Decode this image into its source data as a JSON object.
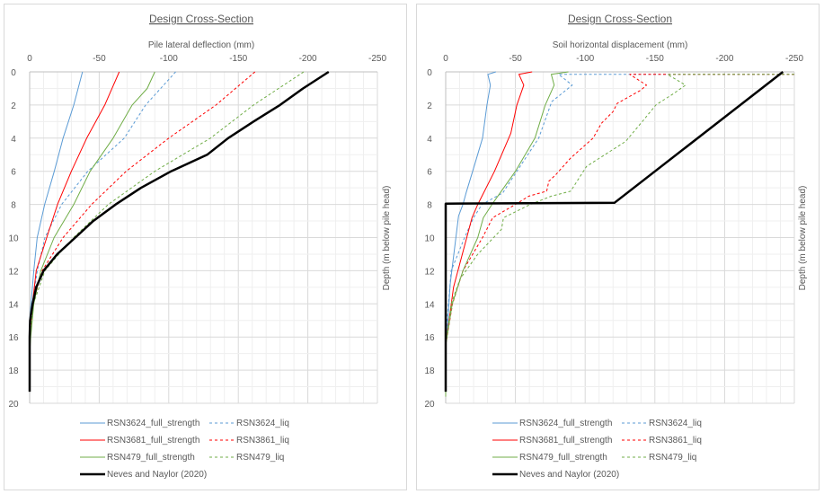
{
  "chart_data": [
    {
      "type": "line",
      "title": "Design Cross-Section",
      "xlabel": "Pile lateral deflection (mm)",
      "ylabel": "Depth (m below pile head)",
      "xlim": [
        0,
        -250
      ],
      "ylim": [
        0,
        20
      ],
      "xticks": [
        "0",
        "-50",
        "-100",
        "-150",
        "-200",
        "-250"
      ],
      "yticks": [
        "0",
        "2",
        "4",
        "6",
        "8",
        "10",
        "12",
        "14",
        "16",
        "18",
        "20"
      ],
      "grid": true,
      "legend_position": "bottom",
      "series": [
        {
          "name": "RSN3624_full_strength",
          "color": "#5b9bd5",
          "dash": false,
          "x": [
            -38,
            -31.7,
            -24,
            -17.7,
            -10.8,
            -5.4,
            -3,
            -1,
            0
          ],
          "y": [
            0,
            2,
            4,
            6,
            8,
            10,
            12,
            14,
            15
          ]
        },
        {
          "name": "RSN3624_liq",
          "color": "#5b9bd5",
          "dash": true,
          "x": [
            -105,
            -83.4,
            -68,
            -41.8,
            -23,
            -11,
            -5.5,
            -2,
            0
          ],
          "y": [
            0,
            2,
            4,
            6,
            8,
            10,
            12,
            14,
            15
          ]
        },
        {
          "name": "RSN3681_full_strength",
          "color": "#ff0000",
          "dash": false,
          "x": [
            -64.4,
            -54,
            -41,
            -30,
            -20,
            -12.3,
            -4.7,
            -2,
            0
          ],
          "y": [
            0,
            2,
            4,
            6,
            8,
            10,
            12,
            14,
            16
          ]
        },
        {
          "name": "RSN3861_liq",
          "color": "#ff0000",
          "dash": true,
          "x": [
            -162,
            -134,
            -100,
            -69.4,
            -44.6,
            -24,
            -9,
            -2.4,
            0
          ],
          "y": [
            0,
            2,
            4,
            6,
            8,
            10,
            12,
            14,
            16
          ]
        },
        {
          "name": "RSN479_full_strength",
          "color": "#70ad47",
          "dash": false,
          "x": [
            -90,
            -84.5,
            -73.7,
            -60,
            -43.5,
            -31.7,
            -17.6,
            -8,
            -3,
            -0.8,
            0
          ],
          "y": [
            0,
            1,
            2,
            4,
            6,
            8,
            10,
            12,
            14,
            16,
            17
          ]
        },
        {
          "name": "RSN479_liq",
          "color": "#70ad47",
          "dash": true,
          "x": [
            -197,
            -161,
            -130,
            -90,
            -56.5,
            -31.6,
            -21,
            -11,
            -2.7,
            0
          ],
          "y": [
            0,
            2,
            4,
            6,
            8,
            10,
            11,
            12,
            14,
            16
          ]
        },
        {
          "name": "Neves and Naylor (2020)",
          "color": "#000000",
          "dash": false,
          "bold": true,
          "x": [
            -215,
            -196.5,
            -180,
            -161,
            -142.7,
            -127.6,
            -101.7,
            -80,
            -61.9,
            -45.7,
            -32.8,
            -19.8,
            -10,
            -4.7,
            -2.1,
            -0.3,
            0,
            0
          ],
          "y": [
            0,
            1,
            2,
            3,
            4,
            5,
            6,
            7,
            8,
            9,
            10,
            11,
            12,
            13,
            14,
            15,
            16,
            19.3
          ]
        }
      ]
    },
    {
      "type": "line",
      "title": "Design Cross-Section",
      "xlabel": "Soil horizontal displacement (mm)",
      "ylabel": "Depth (m below pile head)",
      "xlim": [
        0,
        -250
      ],
      "ylim": [
        0,
        20
      ],
      "xticks": [
        "0",
        "-50",
        "-100",
        "-150",
        "-200",
        "-250"
      ],
      "yticks": [
        "0",
        "2",
        "4",
        "6",
        "8",
        "10",
        "12",
        "14",
        "16",
        "18",
        "20"
      ],
      "grid": true,
      "legend_position": "bottom",
      "series": [
        {
          "name": "RSN3624_full_strength",
          "color": "#5b9bd5",
          "dash": false,
          "x": [
            -36,
            -30.2,
            -32,
            -29.6,
            -26.4,
            -19.3,
            -14.6,
            -12.4,
            -9.2,
            -3.2,
            -0.8,
            0
          ],
          "y": [
            0,
            0.15,
            0.8,
            2,
            4,
            6,
            7.3,
            8,
            8.7,
            12.8,
            16,
            16.5
          ]
        },
        {
          "name": "RSN3624_liq",
          "color": "#5b9bd5",
          "dash": true,
          "x": [
            -250,
            -81,
            -90.7,
            -76,
            -66.7,
            -44,
            -41,
            -26,
            -20,
            -13.5,
            -3.9,
            0
          ],
          "y": [
            0.15,
            0.15,
            0.8,
            1.8,
            4,
            6.9,
            7.3,
            8,
            8.8,
            10,
            12,
            16
          ]
        },
        {
          "name": "RSN3681_full_strength",
          "color": "#ff0000",
          "dash": false,
          "x": [
            -62,
            -52.5,
            -56,
            -51,
            -46.7,
            -35,
            -23,
            -18.9,
            -5.6,
            0
          ],
          "y": [
            0,
            0.15,
            0.8,
            2,
            3.7,
            6,
            8,
            8.8,
            13,
            16.5
          ]
        },
        {
          "name": "RSN3861_liq",
          "color": "#ff0000",
          "dash": true,
          "x": [
            -250,
            -132,
            -144,
            -140,
            -123,
            -120,
            -111.7,
            -105.7,
            -89.6,
            -79,
            -74,
            -72.4,
            -59.6,
            -50,
            -33.7,
            -26.4,
            -12.4,
            -4.9,
            0
          ],
          "y": [
            0.15,
            0.15,
            0.8,
            1.1,
            1.9,
            2.4,
            3.1,
            4,
            5.2,
            6.2,
            6.6,
            7.2,
            7.5,
            8,
            8.8,
            10,
            12,
            14,
            16.5
          ]
        },
        {
          "name": "RSN479_full_strength",
          "color": "#70ad47",
          "dash": false,
          "x": [
            -88,
            -75.7,
            -77.8,
            -71.4,
            -64,
            -50,
            -33.2,
            -27,
            -23,
            -12.4,
            -4.7,
            0,
            0
          ],
          "y": [
            0,
            0.15,
            0.8,
            2,
            4,
            6,
            8,
            8.8,
            10,
            12,
            14,
            16.5,
            19.6
          ]
        },
        {
          "name": "RSN479_liq",
          "color": "#70ad47",
          "dash": true,
          "x": [
            -250,
            -159,
            -172,
            -163.6,
            -150.7,
            -141,
            -129,
            -101,
            -89.6,
            -75.7,
            -60.7,
            -41.4,
            -40,
            -23,
            -10.3,
            -3.9,
            0
          ],
          "y": [
            0.15,
            0.15,
            0.8,
            1.3,
            2,
            3,
            4.2,
            5.7,
            7.2,
            7.5,
            8,
            8.8,
            9.5,
            11,
            12.5,
            14,
            16.5
          ]
        },
        {
          "name": "Neves and Naylor (2020)",
          "color": "#000000",
          "dash": false,
          "bold": true,
          "x": [
            -241.8,
            -121,
            0,
            0
          ],
          "y": [
            0,
            7.9,
            7.95,
            19.3
          ]
        }
      ]
    }
  ]
}
